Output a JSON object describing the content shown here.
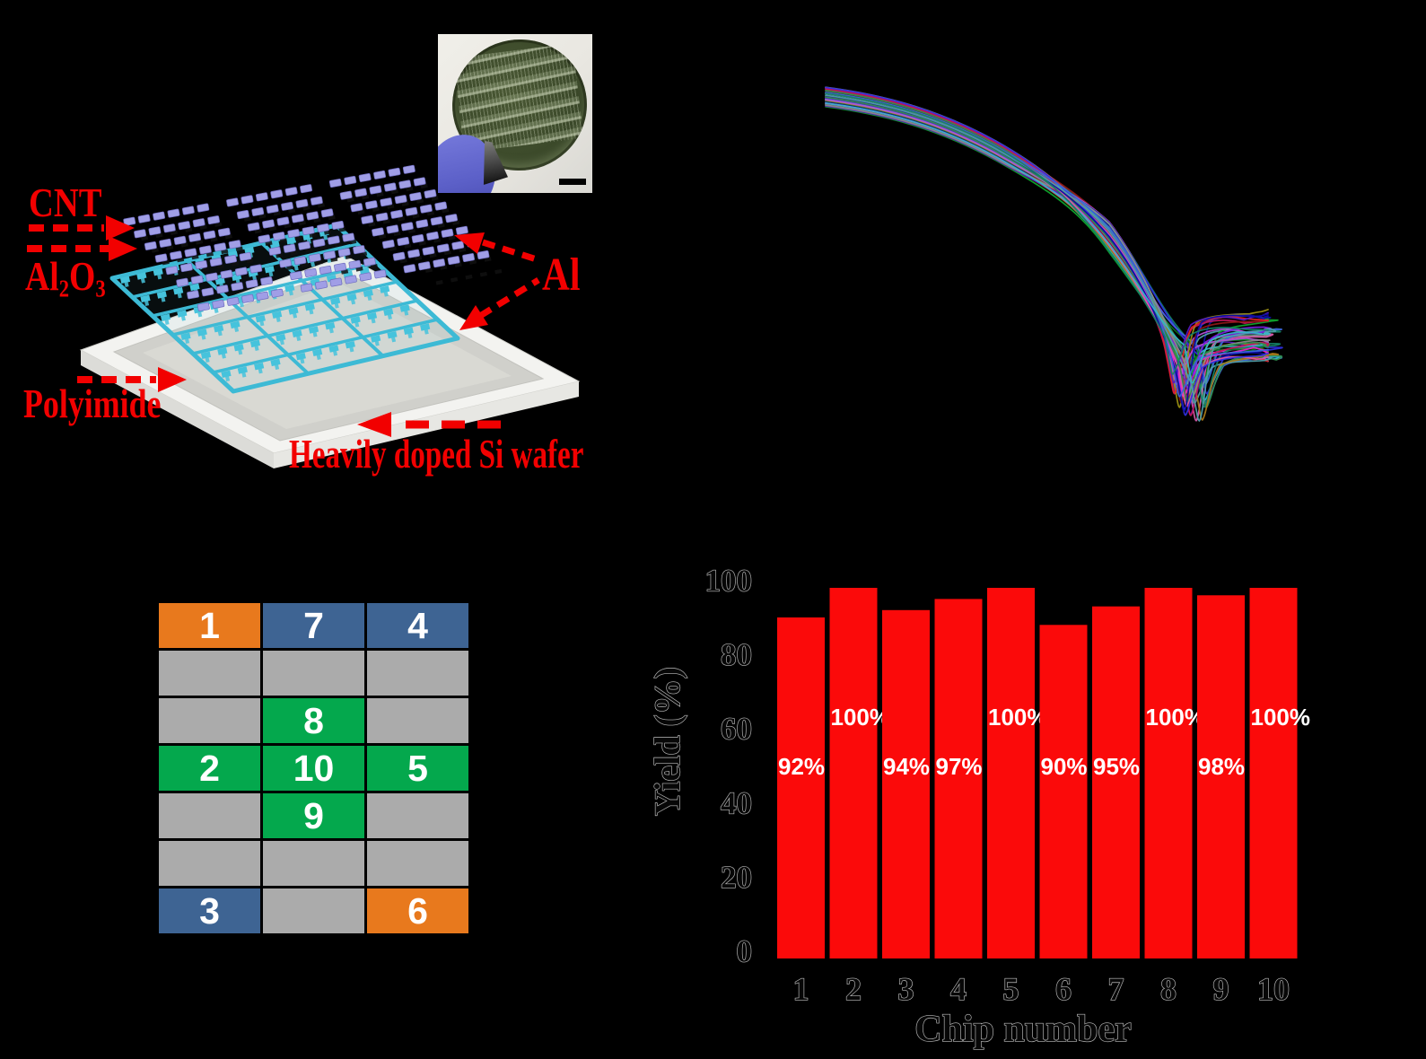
{
  "background": "#000000",
  "panels": {
    "schematic": {
      "label_cnt": "CNT",
      "label_al2o3_a": "Al",
      "label_al2o3_b": "2",
      "label_al2o3_c": "O",
      "label_al2o3_d": "3",
      "label_polyimide": "Polyimide",
      "label_si_wafer": "Heavily doped Si wafer",
      "label_al": "Al",
      "arrow_color": "#f20000",
      "cnt_block_color": "#a09ee6",
      "cnt_block_edge": "#6f6cc0",
      "gate_grid_color": "#3dbad5",
      "gate_pad_color": "#46c3dc",
      "contact_mark_color": "#101010",
      "wafer_top_color": "#f3f3f0",
      "wafer_side_color": "#dcdcd8",
      "polyimide_color": "#cfcfca",
      "polyimide_inner_color": "#d9d9d4"
    },
    "inset_photo": {
      "wafer_color": "#3d4b2b",
      "glove_color": "#5c60c8",
      "background_color": "#ece9e2",
      "scalebar_color": "#000000"
    }
  },
  "chart_data": [
    {
      "type": "line",
      "title": "",
      "xlabel": "",
      "ylabel": "",
      "note": "Overlaid transfer curves of ~46 CNT transistors; axis ticks/labels are not visible against the black background. Curves start high and flat at left, fall steeply, reach a sharp minimum, then recover to a short flat tail at right.",
      "n_curves": 46,
      "representative_shape_xy_normalized": [
        [
          0.0,
          1.0
        ],
        [
          0.18,
          0.95
        ],
        [
          0.38,
          0.82
        ],
        [
          0.52,
          0.62
        ],
        [
          0.66,
          0.33
        ],
        [
          0.78,
          0.08
        ],
        [
          0.83,
          0.0
        ],
        [
          0.87,
          0.2
        ],
        [
          0.92,
          0.22
        ],
        [
          1.0,
          0.21
        ]
      ],
      "palette": [
        "#2e2ee0",
        "#0d0da0",
        "#3a66d8",
        "#4f9faa",
        "#35b6c8",
        "#147f66",
        "#0fa32c",
        "#0b701c",
        "#9a8f12",
        "#a6791a",
        "#8e1616",
        "#e42222",
        "#c4155a",
        "#e820d8",
        "#b44fd8",
        "#7a1fe0",
        "#5518c0",
        "#8a8a8a",
        "#2f8f4f",
        "#d85aaa"
      ],
      "legend": []
    },
    {
      "type": "bar",
      "categories": [
        "1",
        "2",
        "3",
        "4",
        "5",
        "6",
        "7",
        "8",
        "9",
        "10"
      ],
      "values": [
        92,
        100,
        94,
        97,
        100,
        90,
        95,
        100,
        98,
        100
      ],
      "bar_labels": [
        "92%",
        "100%",
        "94%",
        "97%",
        "100%",
        "90%",
        "95%",
        "100%",
        "98%",
        "100%"
      ],
      "title": "",
      "xlabel": "Chip number",
      "ylabel": "Yield (%)",
      "ylim": [
        0,
        100
      ],
      "yticks": [
        0,
        20,
        40,
        60,
        80,
        100
      ],
      "grid": false,
      "legend_position": "none",
      "bar_color": "#fb0a0a",
      "bar_label_color": "#ffffff",
      "axis_text_color": "#070707"
    },
    {
      "type": "table",
      "note": "Wafer/chip map, 7 rows x 3 columns; numbered chips 1-10 highlighted",
      "cells": [
        [
          "1",
          "7",
          "4"
        ],
        [
          "",
          "",
          ""
        ],
        [
          "",
          "8",
          ""
        ],
        [
          "2",
          "10",
          "5"
        ],
        [
          "",
          "9",
          ""
        ],
        [
          "",
          "",
          ""
        ],
        [
          "3",
          "",
          "6"
        ]
      ],
      "cell_colors": [
        [
          "orange",
          "blue",
          "blue"
        ],
        [
          "gray",
          "gray",
          "gray"
        ],
        [
          "gray",
          "green",
          "gray"
        ],
        [
          "green",
          "green",
          "green"
        ],
        [
          "gray",
          "green",
          "gray"
        ],
        [
          "gray",
          "gray",
          "gray"
        ],
        [
          "blue",
          "gray",
          "orange"
        ]
      ],
      "color_map": {
        "orange": "#E8791D",
        "blue": "#3E6493",
        "green": "#04A84D",
        "gray": "#ABABAB",
        "text": "#FFFFFF"
      }
    }
  ]
}
